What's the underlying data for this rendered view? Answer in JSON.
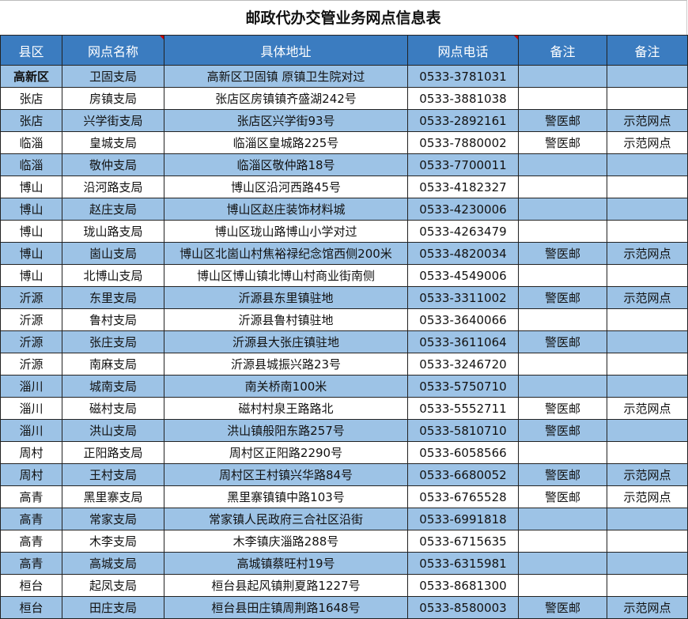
{
  "title": "邮政代办交管业务网点信息表",
  "headers": [
    "县区",
    "网点名称",
    "具体地址",
    "网点电话",
    "备注",
    "备注"
  ],
  "rows": [
    [
      "高新区",
      "卫固支局",
      "高新区卫固镇 原镇卫生院对过",
      "0533-3781031",
      "",
      ""
    ],
    [
      "张店",
      "房镇支局",
      "张店区房镇镇齐盛湖242号",
      "0533-3881038",
      "",
      ""
    ],
    [
      "张店",
      "兴学街支局",
      "张店区兴学街93号",
      "0533-2892161",
      "警医邮",
      "示范网点"
    ],
    [
      "临淄",
      "皇城支局",
      "临淄区皇城路225号",
      "0533-7880002",
      "警医邮",
      "示范网点"
    ],
    [
      "临淄",
      "敬仲支局",
      "临淄区敬仲路18号",
      "0533-7700011",
      "",
      ""
    ],
    [
      "博山",
      "沿河路支局",
      "博山区沿河西路45号",
      "0533-4182327",
      "",
      ""
    ],
    [
      "博山",
      "赵庄支局",
      "博山区赵庄装饰材料城",
      "0533-4230006",
      "",
      ""
    ],
    [
      "博山",
      "珑山路支局",
      "博山区珑山路博山小学对过",
      "0533-4263479",
      "",
      ""
    ],
    [
      "博山",
      "崮山支局",
      "博山区北崮山村焦裕禄纪念馆西侧200米",
      "0533-4820034",
      "警医邮",
      "示范网点"
    ],
    [
      "博山",
      "北博山支局",
      "博山区博山镇北博山村商业街南侧",
      "0533-4549006",
      "",
      ""
    ],
    [
      "沂源",
      "东里支局",
      "沂源县东里镇驻地",
      "0533-3311002",
      "警医邮",
      "示范网点"
    ],
    [
      "沂源",
      "鲁村支局",
      "沂源县鲁村镇驻地",
      "0533-3640066",
      "",
      ""
    ],
    [
      "沂源",
      "张庄支局",
      "沂源县大张庄镇驻地",
      "0533-3611064",
      "警医邮",
      ""
    ],
    [
      "沂源",
      "南麻支局",
      "沂源县城振兴路23号",
      "0533-3246720",
      "",
      ""
    ],
    [
      "淄川",
      "城南支局",
      "南关桥南100米",
      "0533-5750710",
      "",
      ""
    ],
    [
      "淄川",
      "磁村支局",
      "磁村村泉王路路北",
      "0533-5552711",
      "警医邮",
      "示范网点"
    ],
    [
      "淄川",
      "洪山支局",
      "洪山镇般阳东路257号",
      "0533-5810710",
      "警医邮",
      ""
    ],
    [
      "周村",
      "正阳路支局",
      "周村区正阳路2290号",
      "0533-6058566",
      "",
      ""
    ],
    [
      "周村",
      "王村支局",
      "周村区王村镇兴华路84号",
      "0533-6680052",
      "警医邮",
      "示范网点"
    ],
    [
      "高青",
      "黑里寨支局",
      "黑里寨镇镇中路103号",
      "0533-6765528",
      "警医邮",
      "示范网点"
    ],
    [
      "高青",
      "常家支局",
      "常家镇人民政府三合社区沿街",
      "0533-6991818",
      "",
      ""
    ],
    [
      "高青",
      "木李支局",
      "木李镇庆淄路288号",
      "0533-6715635",
      "",
      ""
    ],
    [
      "高青",
      "高城支局",
      "高城镇蔡旺村19号",
      "0533-6315981",
      "",
      ""
    ],
    [
      "桓台",
      "起凤支局",
      "桓台县起风镇荆夏路1227号",
      "0533-8681300",
      "",
      ""
    ],
    [
      "桓台",
      "田庄支局",
      "桓台县田庄镇周荆路1648号",
      "0533-8580003",
      "警医邮",
      "示范网点"
    ]
  ],
  "colors": {
    "header_bg": "#3b7cc0",
    "alt_row_bg": "#9dc3e6"
  }
}
